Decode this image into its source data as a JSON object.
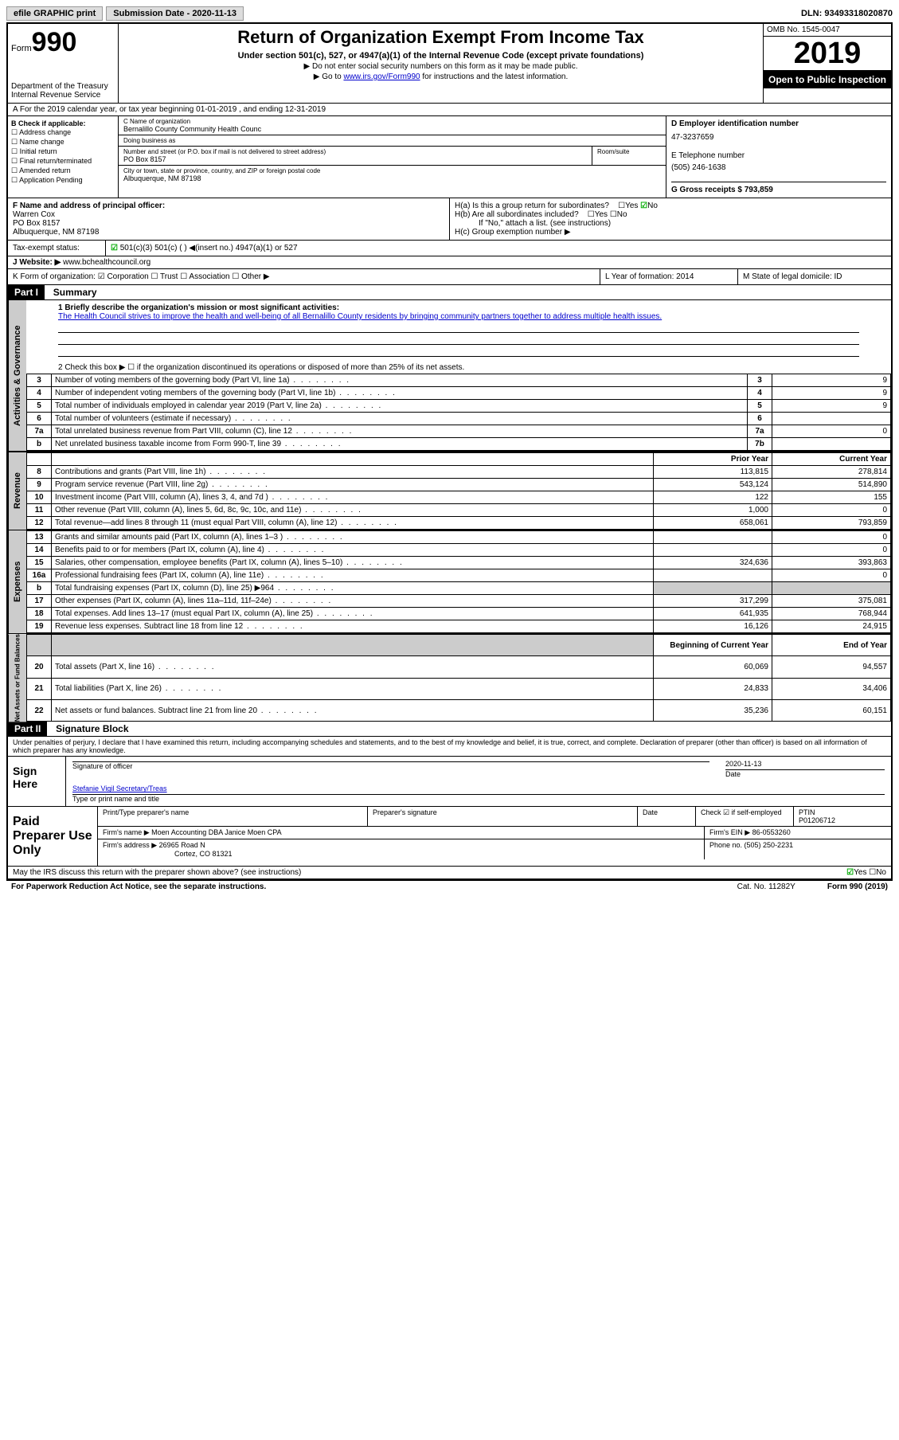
{
  "topbar": {
    "efile": "efile GRAPHIC print",
    "submission_label": "Submission Date - 2020-11-13",
    "dln": "DLN: 93493318020870"
  },
  "header": {
    "form_label": "Form",
    "form_number": "990",
    "dept": "Department of the Treasury\nInternal Revenue Service",
    "title": "Return of Organization Exempt From Income Tax",
    "subtitle": "Under section 501(c), 527, or 4947(a)(1) of the Internal Revenue Code (except private foundations)",
    "note1": "▶ Do not enter social security numbers on this form as it may be made public.",
    "note2_pre": "▶ Go to ",
    "note2_link": "www.irs.gov/Form990",
    "note2_post": " for instructions and the latest information.",
    "omb": "OMB No. 1545-0047",
    "year": "2019",
    "public": "Open to Public Inspection"
  },
  "row_a": "A For the 2019 calendar year, or tax year beginning 01-01-2019   , and ending 12-31-2019",
  "boxB": {
    "label": "B Check if applicable:",
    "items": [
      "Address change",
      "Name change",
      "Initial return",
      "Final return/terminated",
      "Amended return",
      "Application Pending"
    ]
  },
  "boxC": {
    "name_lbl": "C Name of organization",
    "name": "Bernalillo County Community Health Counc",
    "dba_lbl": "Doing business as",
    "addr_lbl": "Number and street (or P.O. box if mail is not delivered to street address)",
    "room_lbl": "Room/suite",
    "addr": "PO Box 8157",
    "city_lbl": "City or town, state or province, country, and ZIP or foreign postal code",
    "city": "Albuquerque, NM  87198"
  },
  "boxD": {
    "lbl": "D Employer identification number",
    "val": "47-3237659"
  },
  "boxE": {
    "lbl": "E Telephone number",
    "val": "(505) 246-1638"
  },
  "boxG": {
    "lbl": "G Gross receipts $ 793,859"
  },
  "boxF": {
    "lbl": "F  Name and address of principal officer:",
    "name": "Warren Cox",
    "addr1": "PO Box 8157",
    "addr2": "Albuquerque, NM  87198"
  },
  "boxH": {
    "a": "H(a)  Is this a group return for subordinates?",
    "a_ans": "No",
    "b": "H(b)  Are all subordinates included?",
    "b_note": "If \"No,\" attach a list. (see instructions)",
    "c": "H(c)  Group exemption number ▶"
  },
  "taxexempt": "Tax-exempt status:",
  "te_opts": "501(c)(3)      501(c) (  ) ◀(insert no.)      4947(a)(1) or      527",
  "website_lbl": "J   Website: ▶",
  "website": "www.bchealthcouncil.org",
  "rowK": "K Form of organization:   ☑ Corporation  ☐ Trust  ☐ Association  ☐ Other ▶",
  "rowL": "L Year of formation: 2014",
  "rowM": "M State of legal domicile: ID",
  "part1_title": "Summary",
  "mission_lbl": "1  Briefly describe the organization's mission or most significant activities:",
  "mission": "The Health Council strives to improve the health and well-being of all Bernalillo County residents by bringing community partners together to address multiple health issues.",
  "line2": "2   Check this box ▶ ☐  if the organization discontinued its operations or disposed of more than 25% of its net assets.",
  "gov_lines": [
    {
      "n": "3",
      "t": "Number of voting members of the governing body (Part VI, line 1a)",
      "box": "3",
      "v": "9"
    },
    {
      "n": "4",
      "t": "Number of independent voting members of the governing body (Part VI, line 1b)",
      "box": "4",
      "v": "9"
    },
    {
      "n": "5",
      "t": "Total number of individuals employed in calendar year 2019 (Part V, line 2a)",
      "box": "5",
      "v": "9"
    },
    {
      "n": "6",
      "t": "Total number of volunteers (estimate if necessary)",
      "box": "6",
      "v": ""
    },
    {
      "n": "7a",
      "t": "Total unrelated business revenue from Part VIII, column (C), line 12",
      "box": "7a",
      "v": "0"
    },
    {
      "n": "b",
      "t": "Net unrelated business taxable income from Form 990-T, line 39",
      "box": "7b",
      "v": ""
    }
  ],
  "col_hdr": {
    "prior": "Prior Year",
    "current": "Current Year"
  },
  "revenue": [
    {
      "n": "8",
      "t": "Contributions and grants (Part VIII, line 1h)",
      "p": "113,815",
      "c": "278,814"
    },
    {
      "n": "9",
      "t": "Program service revenue (Part VIII, line 2g)",
      "p": "543,124",
      "c": "514,890"
    },
    {
      "n": "10",
      "t": "Investment income (Part VIII, column (A), lines 3, 4, and 7d )",
      "p": "122",
      "c": "155"
    },
    {
      "n": "11",
      "t": "Other revenue (Part VIII, column (A), lines 5, 6d, 8c, 9c, 10c, and 11e)",
      "p": "1,000",
      "c": "0"
    },
    {
      "n": "12",
      "t": "Total revenue—add lines 8 through 11 (must equal Part VIII, column (A), line 12)",
      "p": "658,061",
      "c": "793,859"
    }
  ],
  "expenses": [
    {
      "n": "13",
      "t": "Grants and similar amounts paid (Part IX, column (A), lines 1–3 )",
      "p": "",
      "c": "0"
    },
    {
      "n": "14",
      "t": "Benefits paid to or for members (Part IX, column (A), line 4)",
      "p": "",
      "c": "0"
    },
    {
      "n": "15",
      "t": "Salaries, other compensation, employee benefits (Part IX, column (A), lines 5–10)",
      "p": "324,636",
      "c": "393,863"
    },
    {
      "n": "16a",
      "t": "Professional fundraising fees (Part IX, column (A), line 11e)",
      "p": "",
      "c": "0"
    },
    {
      "n": "b",
      "t": "Total fundraising expenses (Part IX, column (D), line 25) ▶964",
      "p": "shade",
      "c": "shade"
    },
    {
      "n": "17",
      "t": "Other expenses (Part IX, column (A), lines 11a–11d, 11f–24e)",
      "p": "317,299",
      "c": "375,081"
    },
    {
      "n": "18",
      "t": "Total expenses. Add lines 13–17 (must equal Part IX, column (A), line 25)",
      "p": "641,935",
      "c": "768,944"
    },
    {
      "n": "19",
      "t": "Revenue less expenses. Subtract line 18 from line 12",
      "p": "16,126",
      "c": "24,915"
    }
  ],
  "net_hdr": {
    "begin": "Beginning of Current Year",
    "end": "End of Year"
  },
  "netassets": [
    {
      "n": "20",
      "t": "Total assets (Part X, line 16)",
      "p": "60,069",
      "c": "94,557"
    },
    {
      "n": "21",
      "t": "Total liabilities (Part X, line 26)",
      "p": "24,833",
      "c": "34,406"
    },
    {
      "n": "22",
      "t": "Net assets or fund balances. Subtract line 21 from line 20",
      "p": "35,236",
      "c": "60,151"
    }
  ],
  "sidetabs": {
    "gov": "Activities & Governance",
    "rev": "Revenue",
    "exp": "Expenses",
    "net": "Net Assets or Fund Balances"
  },
  "part2_title": "Signature Block",
  "penalties": "Under penalties of perjury, I declare that I have examined this return, including accompanying schedules and statements, and to the best of my knowledge and belief, it is true, correct, and complete. Declaration of preparer (other than officer) is based on all information of which preparer has any knowledge.",
  "sign": {
    "here": "Sign Here",
    "sig_lbl": "Signature of officer",
    "date_lbl": "Date",
    "date": "2020-11-13",
    "name": "Stefanie Vigil Secretary/Treas",
    "name_lbl": "Type or print name and title"
  },
  "paid": {
    "title": "Paid Preparer Use Only",
    "h1": "Print/Type preparer's name",
    "h2": "Preparer's signature",
    "h3": "Date",
    "check_lbl": "Check ☑ if self-employed",
    "ptin_lbl": "PTIN",
    "ptin": "P01206712",
    "firm_lbl": "Firm's name   ▶",
    "firm": "Moen Accounting DBA Janice Moen CPA",
    "ein_lbl": "Firm's EIN ▶",
    "ein": "86-0553260",
    "addr_lbl": "Firm's address ▶",
    "addr1": "26965 Road N",
    "addr2": "Cortez, CO  81321",
    "phone_lbl": "Phone no. (505) 250-2231"
  },
  "may_irs": "May the IRS discuss this return with the preparer shown above? (see instructions)",
  "may_irs_ans": "Yes",
  "footer": {
    "l": "For Paperwork Reduction Act Notice, see the separate instructions.",
    "m": "Cat. No. 11282Y",
    "r": "Form 990 (2019)"
  }
}
